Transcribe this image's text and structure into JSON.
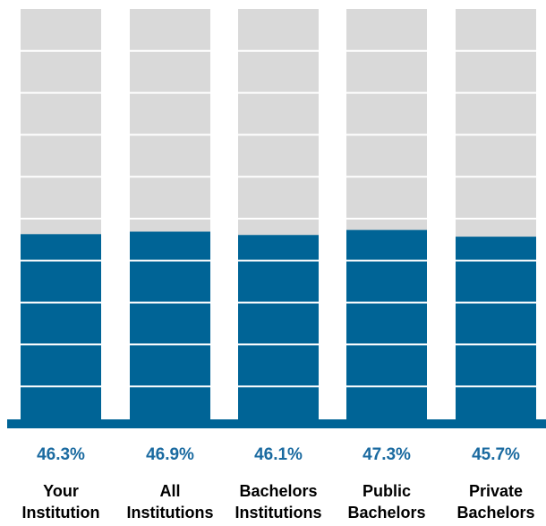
{
  "chart_data": {
    "type": "bar",
    "stacked_to_100": true,
    "categories": [
      "Your Institution",
      "All Institutions",
      "Bachelors Institutions",
      "Public Bachelors",
      "Private Bachelors"
    ],
    "category_lines": [
      [
        "Your",
        "Institution"
      ],
      [
        "All",
        "Institutions"
      ],
      [
        "Bachelors",
        "Institutions"
      ],
      [
        "Public",
        "Bachelors"
      ],
      [
        "Private",
        "Bachelors"
      ]
    ],
    "values": [
      46.3,
      46.9,
      46.1,
      47.3,
      45.7
    ],
    "value_labels": [
      "46.3%",
      "46.9%",
      "46.1%",
      "47.3%",
      "45.7%"
    ],
    "ylim": [
      0,
      100
    ],
    "gridlines": [
      10,
      20,
      30,
      40,
      50,
      60,
      70,
      80,
      90
    ],
    "title": "",
    "xlabel": "",
    "ylabel": "",
    "colors": {
      "bar_fill": "#006496",
      "bar_background": "#d9d9d9",
      "value_label": "#1a6aa0",
      "gridline": "#ffffff"
    }
  }
}
